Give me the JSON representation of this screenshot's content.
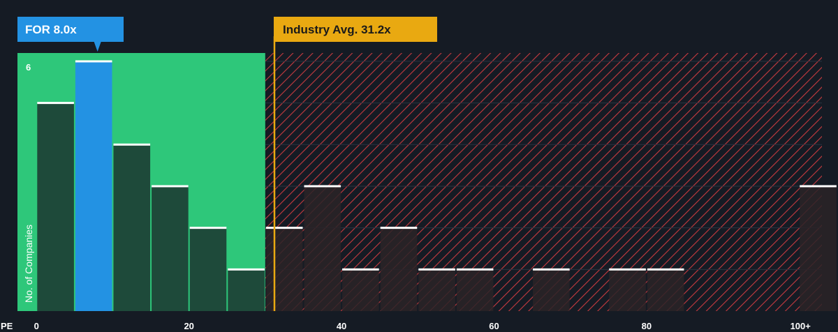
{
  "chart_data": {
    "type": "bar",
    "x_axis_prefix": "PE",
    "ylabel": "No. of Companies",
    "x_ticks": [
      {
        "value": 0,
        "label": "0"
      },
      {
        "value": 20,
        "label": "20"
      },
      {
        "value": 40,
        "label": "40"
      },
      {
        "value": 60,
        "label": "60"
      },
      {
        "value": 80,
        "label": "80"
      },
      {
        "value": 100,
        "label": "100+"
      }
    ],
    "y_ticks": [
      {
        "value": 6,
        "label": "6"
      }
    ],
    "xlim": [
      -2.5,
      103
    ],
    "ylim": [
      0,
      6.2
    ],
    "bin_width": 5,
    "bins": [
      {
        "x0": 0,
        "count": 5
      },
      {
        "x0": 5,
        "count": 6
      },
      {
        "x0": 10,
        "count": 4
      },
      {
        "x0": 15,
        "count": 3
      },
      {
        "x0": 20,
        "count": 2
      },
      {
        "x0": 25,
        "count": 1
      },
      {
        "x0": 30,
        "count": 2
      },
      {
        "x0": 35,
        "count": 3
      },
      {
        "x0": 40,
        "count": 1
      },
      {
        "x0": 45,
        "count": 2
      },
      {
        "x0": 50,
        "count": 1
      },
      {
        "x0": 55,
        "count": 1
      },
      {
        "x0": 65,
        "count": 1
      },
      {
        "x0": 75,
        "count": 1
      },
      {
        "x0": 80,
        "count": 1
      },
      {
        "x0": 100,
        "count": 3
      }
    ],
    "highlight_bin_x0": 5,
    "fair_zone_max": 30,
    "company": {
      "label": "FOR 8.0x",
      "value": 8.0
    },
    "industry_avg": {
      "label": "Industry Avg. 31.2x",
      "value": 31.2
    },
    "colors": {
      "background": "#151b24",
      "fair_zone": "#2ec77a",
      "overvalued_hatch": "#c63a3f",
      "bar_green_zone": "#1e4a3a",
      "bar_red_zone": "#2a2327",
      "bar_highlight": "#2392e3",
      "bar_cap": "#ffffff",
      "industry_line": "#e9a911",
      "company_callout": "#2392e3",
      "industry_callout": "#e9a911",
      "industry_callout_text": "#1a1a1a",
      "gridline": "#2a3340",
      "text": "#ffffff"
    }
  }
}
